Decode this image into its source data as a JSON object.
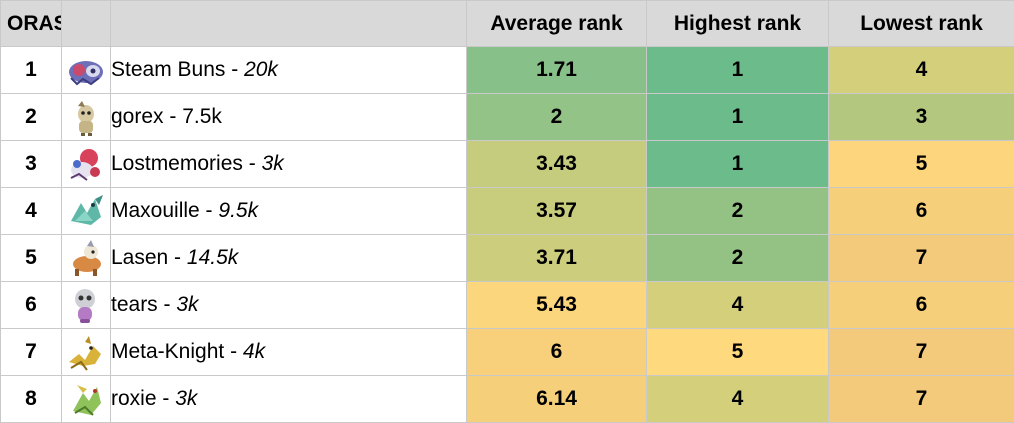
{
  "headers": {
    "corner": "ORAS",
    "average": "Average rank",
    "highest": "Highest rank",
    "lowest": "Lowest rank"
  },
  "rows": [
    {
      "rank": "1",
      "name": "Steam Buns",
      "sep": " - ",
      "points": "20k",
      "points_italic": true,
      "average": "1.71",
      "highest": "1",
      "lowest": "4",
      "colors": {
        "average": "#88c08a",
        "highest": "#6cbb8b",
        "lowest": "#d3cf7b"
      },
      "sprite": "blue-ghost-sprite-icon"
    },
    {
      "rank": "2",
      "name": "gorex",
      "sep": " - ",
      "points": "7.5k",
      "points_italic": false,
      "average": "2",
      "highest": "1",
      "lowest": "3",
      "colors": {
        "average": "#93c386",
        "highest": "#6cbb8b",
        "lowest": "#b3c77f"
      },
      "sprite": "beige-creature-sprite-icon"
    },
    {
      "rank": "3",
      "name": "Lostmemories",
      "sep": " - ",
      "points": "3k",
      "points_italic": true,
      "average": "3.43",
      "highest": "1",
      "lowest": "5",
      "colors": {
        "average": "#c6cc7e",
        "highest": "#6cbb8b",
        "lowest": "#fcd57c"
      },
      "sprite": "red-clown-sprite-icon"
    },
    {
      "rank": "4",
      "name": "Maxouille",
      "sep": " - ",
      "points": "9.5k",
      "points_italic": true,
      "average": "3.57",
      "highest": "2",
      "lowest": "6",
      "colors": {
        "average": "#c8cd7d",
        "highest": "#94c285",
        "lowest": "#f6cf7b"
      },
      "sprite": "teal-dragon-sprite-icon"
    },
    {
      "rank": "5",
      "name": "Lasen",
      "sep": " - ",
      "points": "14.5k",
      "points_italic": true,
      "average": "3.71",
      "highest": "2",
      "lowest": "7",
      "colors": {
        "average": "#cccd7d",
        "highest": "#94c285",
        "lowest": "#f3c97c"
      },
      "sprite": "orange-beast-sprite-icon"
    },
    {
      "rank": "6",
      "name": "tears",
      "sep": " - ",
      "points": "3k",
      "points_italic": true,
      "average": "5.43",
      "highest": "4",
      "lowest": "6",
      "colors": {
        "average": "#fcd67c",
        "highest": "#d3cf7b",
        "lowest": "#f6cf7b"
      },
      "sprite": "grey-skull-sprite-icon"
    },
    {
      "rank": "7",
      "name": "Meta-Knight",
      "sep": " - ",
      "points": "4k",
      "points_italic": true,
      "average": "6",
      "highest": "5",
      "lowest": "7",
      "colors": {
        "average": "#f8d07b",
        "highest": "#fed97e",
        "lowest": "#f3c97c"
      },
      "sprite": "gold-insect-sprite-icon"
    },
    {
      "rank": "8",
      "name": "roxie",
      "sep": " - ",
      "points": "3k",
      "points_italic": true,
      "average": "6.14",
      "highest": "4",
      "lowest": "7",
      "colors": {
        "average": "#f6cf7b",
        "highest": "#d3cf7b",
        "lowest": "#f3c97c"
      },
      "sprite": "green-mantis-sprite-icon"
    }
  ]
}
